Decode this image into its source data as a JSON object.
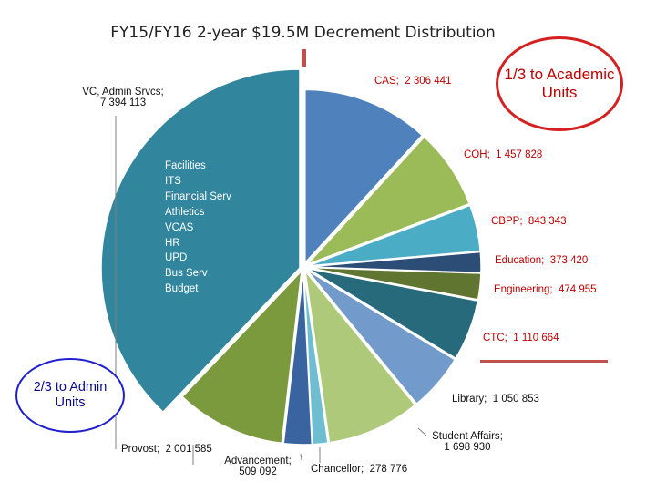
{
  "chart_data": {
    "type": "pie",
    "title": "FY15/FY16 2-year $19.5M Decrement Distribution",
    "slices": [
      {
        "label": "CAS",
        "value": 2306441,
        "display": "2 306 441",
        "color": "#4f81bd"
      },
      {
        "label": "COH",
        "value": 1457828,
        "display": "1 457 828",
        "color": "#9bbb59"
      },
      {
        "label": "CBPP",
        "value": 843343,
        "display": "843 343",
        "color": "#4bacc6"
      },
      {
        "label": "Education",
        "value": 373420,
        "display": "373 420",
        "color": "#2c4d75"
      },
      {
        "label": "Engineering",
        "value": 474955,
        "display": "474 955",
        "color": "#5f7530"
      },
      {
        "label": "CTC",
        "value": 1110664,
        "display": "1 110 664",
        "color": "#276a7c"
      },
      {
        "label": "Library",
        "value": 1050853,
        "display": "1 050 853",
        "color": "#729aca"
      },
      {
        "label": "Student Affairs",
        "value": 1698930,
        "display": "1 698 930",
        "color": "#afc97a"
      },
      {
        "label": "Chancellor",
        "value": 278776,
        "display": "278 776",
        "color": "#6fbdd1"
      },
      {
        "label": "Advancement",
        "value": 509092,
        "display": "509 092",
        "color": "#3a64a0"
      },
      {
        "label": "Provost",
        "value": 2001585,
        "display": "2 001 585",
        "color": "#7b9a3e"
      },
      {
        "label": "VC, Admin Srvcs",
        "value": 7394113,
        "display": "7 394 113",
        "color": "#31859c"
      }
    ],
    "admin_units": [
      "Facilities",
      "ITS",
      "Financial Serv",
      "Athletics",
      "VCAS",
      "HR",
      "UPD",
      "Bus Serv",
      "Budget"
    ]
  },
  "callouts": {
    "academic": "1/3 to Academic Units",
    "admin": "2/3 to Admin Units"
  },
  "colors": {
    "marker": "#c0504d",
    "academic_border": "#d42020",
    "admin_border": "#1f1fd0"
  }
}
